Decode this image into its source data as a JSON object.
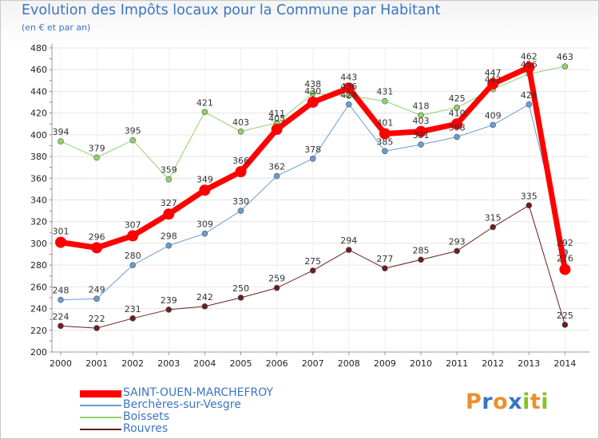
{
  "header": {
    "title": "Evolution des Impôts locaux pour la Commune par Habitant",
    "subtitle": "(en € et par an)"
  },
  "logo": {
    "letters": [
      "P",
      "r",
      "o",
      "x",
      "i",
      "t",
      "i"
    ],
    "colors": [
      "#e8912c",
      "#3a75c4",
      "#e8912c",
      "#3a75c4",
      "#8bbf2a",
      "#e8912c",
      "#8bbf2a"
    ]
  },
  "chart_data": {
    "type": "line",
    "title": "Evolution des Impôts locaux pour la Commune par Habitant",
    "subtitle": "(en € et par an)",
    "categories": [
      "2000",
      "2001",
      "2002",
      "2003",
      "2004",
      "2005",
      "2006",
      "2007",
      "2008",
      "2009",
      "2010",
      "2011",
      "2012",
      "2013",
      "2014"
    ],
    "ylim": [
      200,
      480
    ],
    "yticks": [
      200,
      220,
      240,
      260,
      280,
      300,
      320,
      340,
      360,
      380,
      400,
      420,
      440,
      460,
      480
    ],
    "grid": "horizontal",
    "legend_position": "bottom-left",
    "series": [
      {
        "name": "SAINT-OUEN-MARCHEFROY",
        "color": "#ff0000",
        "width": 7,
        "marker": 7,
        "values": [
          301,
          296,
          307,
          327,
          349,
          366,
          405,
          430,
          443,
          401,
          403,
          410,
          447,
          462,
          276
        ]
      },
      {
        "name": "Berchères-sur-Vesgre",
        "color": "#6a9bd3",
        "width": 1,
        "marker": 3.5,
        "values": [
          248,
          249,
          280,
          298,
          309,
          330,
          362,
          378,
          428,
          385,
          391,
          398,
          409,
          428,
          292
        ]
      },
      {
        "name": "Boissets",
        "color": "#8fd46a",
        "width": 1,
        "marker": 3.5,
        "values": [
          394,
          379,
          395,
          359,
          421,
          403,
          411,
          438,
          436,
          431,
          418,
          425,
          442,
          456,
          463
        ]
      },
      {
        "name": "Rouvres",
        "color": "#6b1e1e",
        "width": 1,
        "marker": 3.5,
        "values": [
          224,
          222,
          231,
          239,
          242,
          250,
          259,
          275,
          294,
          277,
          285,
          293,
          315,
          335,
          225
        ]
      }
    ]
  }
}
